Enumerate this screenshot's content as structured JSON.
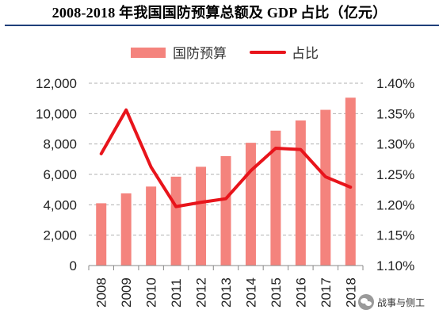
{
  "title": "2008-2018 年我国国防预算总额及 GDP 占比（亿元）",
  "watermark": "战事与侧工",
  "chart_data": {
    "type": "bar",
    "categories": [
      "2008",
      "2009",
      "2010",
      "2011",
      "2012",
      "2013",
      "2014",
      "2015",
      "2016",
      "2017",
      "2018"
    ],
    "series": [
      {
        "name": "国防预算",
        "type": "bar",
        "axis": "left",
        "color": "#f4837d",
        "values": [
          4100,
          4750,
          5200,
          5850,
          6500,
          7200,
          8080,
          8880,
          9550,
          10250,
          11050
        ]
      },
      {
        "name": "占比",
        "type": "line",
        "axis": "right",
        "color": "#e8141b",
        "values": [
          1.284,
          1.356,
          1.262,
          1.197,
          1.204,
          1.21,
          1.256,
          1.293,
          1.291,
          1.246,
          1.229
        ]
      }
    ],
    "y_left": {
      "min": 0,
      "max": 12000,
      "ticks": [
        "0",
        "2,000",
        "4,000",
        "6,000",
        "8,000",
        "10,000",
        "12,000"
      ]
    },
    "y_right": {
      "min": 1.1,
      "max": 1.4,
      "ticks": [
        "1.10%",
        "1.15%",
        "1.20%",
        "1.25%",
        "1.30%",
        "1.35%",
        "1.40%"
      ]
    },
    "grid": "dashed horizontal",
    "legend_position": "top"
  }
}
